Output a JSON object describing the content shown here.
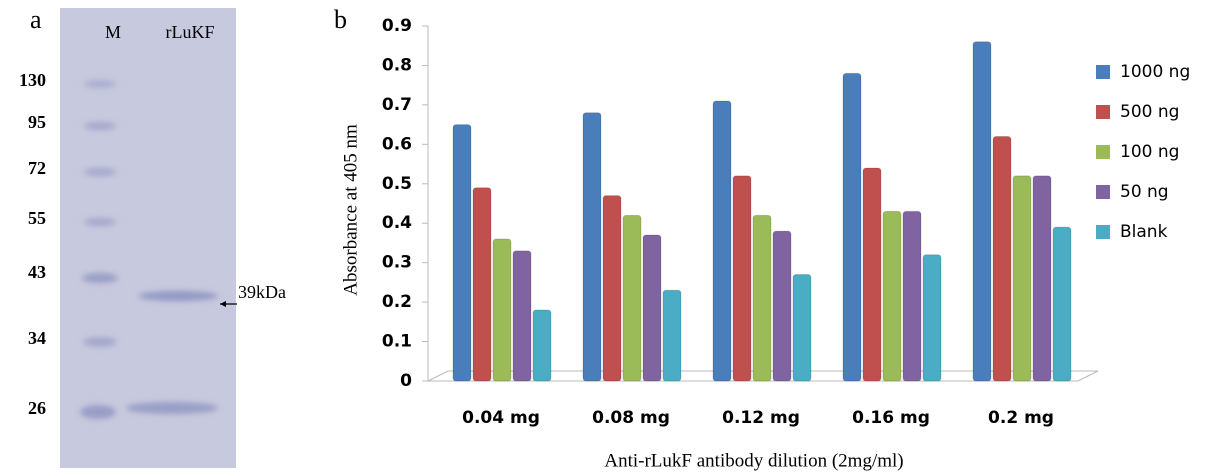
{
  "panel_a": {
    "label": "a",
    "lanes": [
      "M",
      "rLuKF"
    ],
    "markers": [
      130,
      95,
      72,
      55,
      43,
      34,
      26
    ],
    "band_label": "39kDa"
  },
  "chart_data": {
    "type": "bar",
    "panel_label": "b",
    "y_label": "Absorbance at 405 nm",
    "x_label": "Anti-rLukF antibody dilution (2mg/ml)",
    "categories": [
      "0.04 mg",
      "0.08 mg",
      "0.12 mg",
      "0.16 mg",
      "0.2 mg"
    ],
    "series": [
      {
        "name": "1000 ng",
        "color": "#4a7ebb",
        "values": [
          0.65,
          0.68,
          0.71,
          0.78,
          0.86
        ]
      },
      {
        "name": "500 ng",
        "color": "#c0504d",
        "values": [
          0.49,
          0.47,
          0.52,
          0.54,
          0.62
        ]
      },
      {
        "name": "100 ng",
        "color": "#9bbb59",
        "values": [
          0.36,
          0.42,
          0.42,
          0.43,
          0.52
        ]
      },
      {
        "name": "50 ng",
        "color": "#8064a2",
        "values": [
          0.33,
          0.37,
          0.38,
          0.43,
          0.52
        ]
      },
      {
        "name": "Blank",
        "color": "#4bacc6",
        "values": [
          0.18,
          0.23,
          0.27,
          0.32,
          0.39
        ]
      }
    ],
    "ylim": [
      0,
      0.9
    ],
    "yticks": [
      0,
      0.1,
      0.2,
      0.3,
      0.4,
      0.5,
      0.6,
      0.7,
      0.8,
      0.9
    ],
    "legend": "right"
  }
}
